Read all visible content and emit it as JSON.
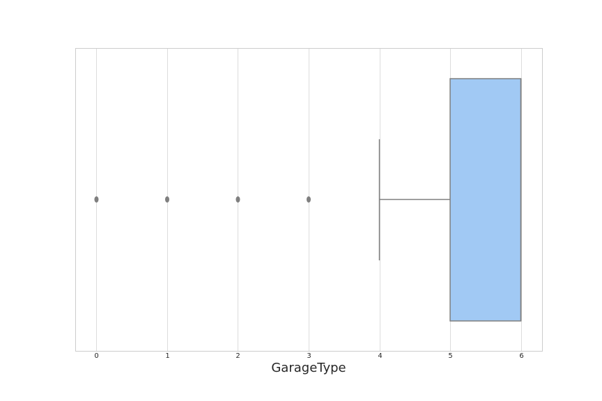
{
  "chart_data": {
    "type": "box",
    "orientation": "horizontal",
    "title": "",
    "xlabel": "GarageType",
    "ylabel": "",
    "xlim": [
      -0.3,
      6.3
    ],
    "xticks": [
      0,
      1,
      2,
      3,
      4,
      5,
      6
    ],
    "xtick_labels": [
      "0",
      "1",
      "2",
      "3",
      "4",
      "5",
      "6"
    ],
    "grid": "vertical",
    "box": {
      "whisker_low": 4,
      "q1": 5,
      "median": 6,
      "q3": 6,
      "whisker_high": 6,
      "outliers": [
        0,
        1,
        2,
        3
      ]
    },
    "colors": {
      "box_fill": "#a1c9f4",
      "box_edge": "#7f7f7f",
      "whisker": "#7f7f7f",
      "outlier": "#7f7f7f",
      "grid": "#dcdcdc",
      "frame": "#cccccc"
    }
  }
}
